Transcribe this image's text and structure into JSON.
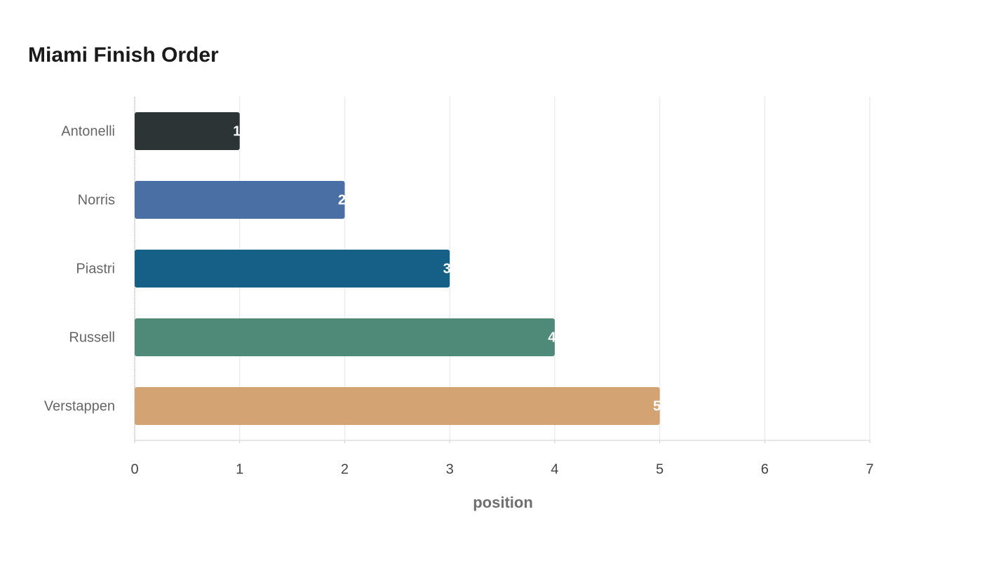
{
  "chart_data": {
    "type": "bar",
    "orientation": "horizontal",
    "title": "Miami Finish Order",
    "x_label": "position",
    "categories": [
      "Antonelli",
      "Norris",
      "Piastri",
      "Russell",
      "Verstappen"
    ],
    "values": [
      1,
      2,
      3,
      4,
      5
    ],
    "colors": [
      "#2d3436",
      "#4a6fa5",
      "#166088",
      "#4f8a78",
      "#d4a373"
    ],
    "xlim": [
      0,
      7
    ],
    "xticks": [
      0,
      1,
      2,
      3,
      4,
      5,
      6,
      7
    ],
    "grid": true
  }
}
